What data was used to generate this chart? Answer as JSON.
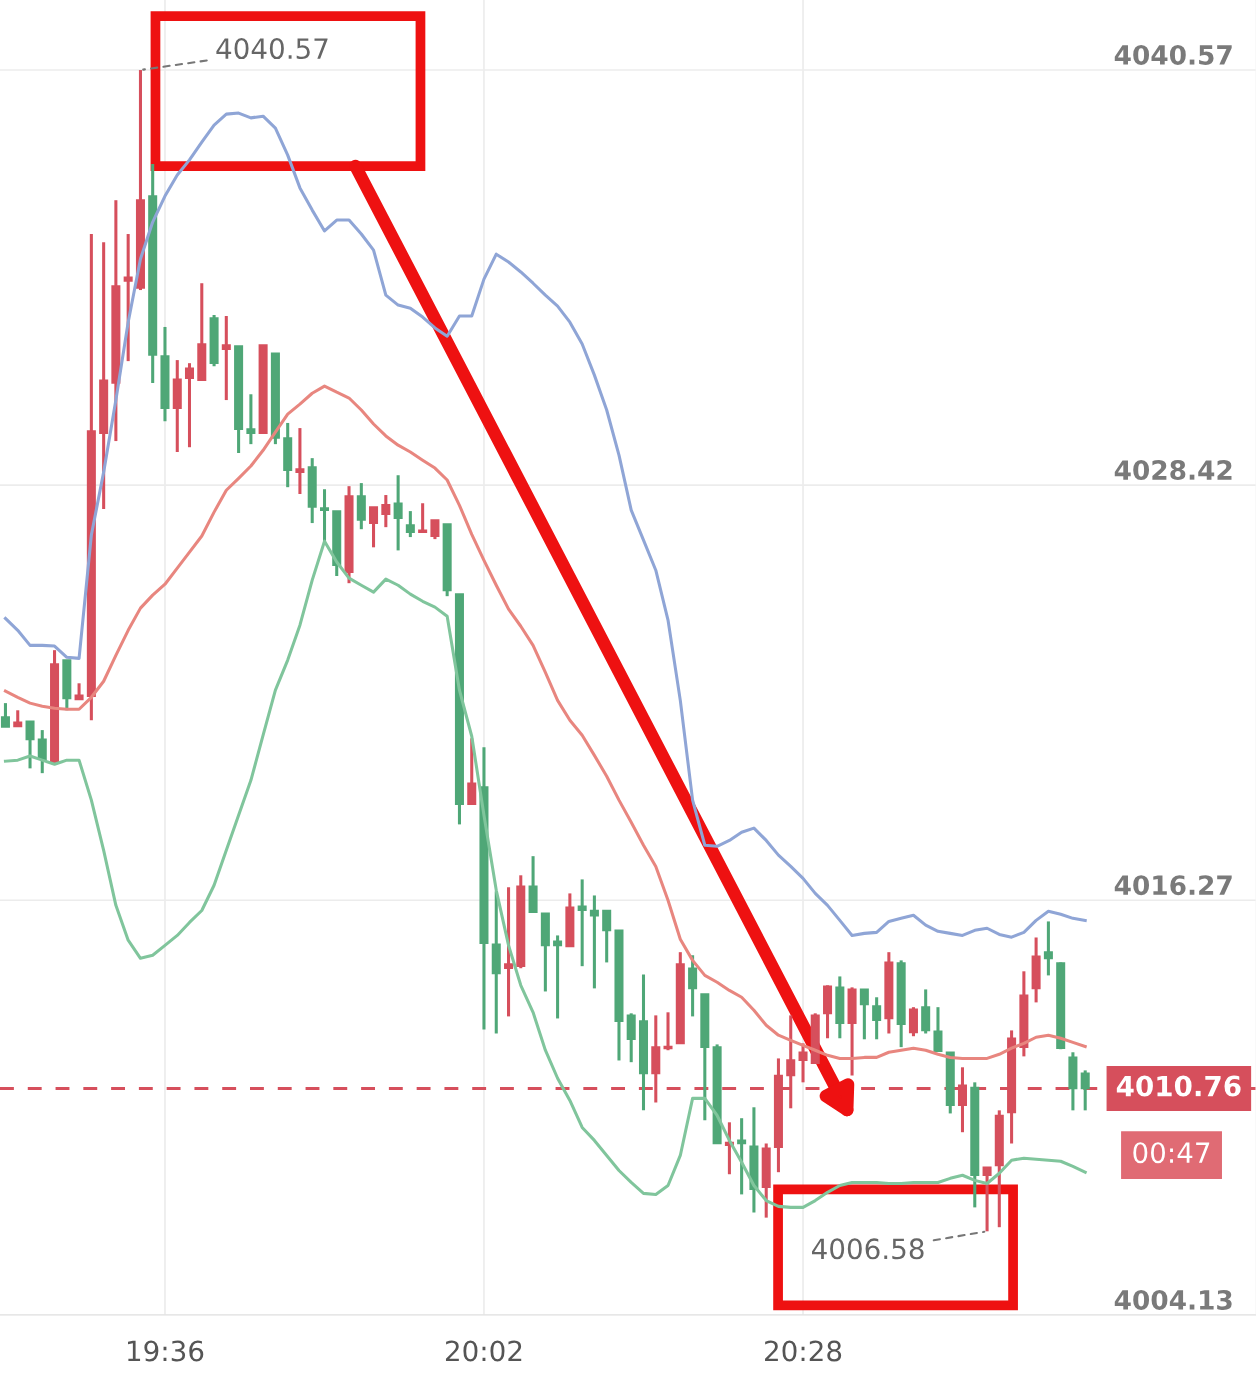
{
  "chart_data": {
    "type": "candlestick",
    "x": [
      19.3833,
      19.4,
      19.4167,
      19.4333,
      19.45,
      19.4667,
      19.4833,
      19.5,
      19.5167,
      19.5333,
      19.55,
      19.5667,
      19.5833,
      19.6,
      19.6167,
      19.6333,
      19.65,
      19.6667,
      19.6833,
      19.7,
      19.7167,
      19.7333,
      19.75,
      19.7667,
      19.7833,
      19.8,
      19.8167,
      19.8333,
      19.85,
      19.8667,
      19.8833,
      19.9,
      19.9167,
      19.9333,
      19.95,
      19.9667,
      19.9833,
      20,
      20.0167,
      20.0333,
      20.05,
      20.0667,
      20.0833,
      20.1,
      20.1167,
      20.1333,
      20.15,
      20.1667,
      20.1833,
      20.2,
      20.2167,
      20.2333,
      20.25,
      20.2667,
      20.2833,
      20.3,
      20.3167,
      20.3333,
      20.35,
      20.3667,
      20.3833,
      20.4,
      20.4167,
      20.4333,
      20.45,
      20.4667,
      20.4833,
      20.5,
      20.5167,
      20.5333,
      20.55,
      20.5667,
      20.5833,
      20.6,
      20.6167,
      20.6333,
      20.65,
      20.6667,
      20.6833,
      20.7,
      20.7167,
      20.7333,
      20.75,
      20.7667,
      20.7833,
      20.8,
      20.8167,
      20.8333,
      20.85
    ],
    "ohlc": [
      [
        4021.63,
        4022.04,
        4021.34,
        4021.34
      ],
      [
        4021.36,
        4021.83,
        4021.34,
        4021.48
      ],
      [
        4021.51,
        4021.51,
        4020.13,
        4020.98
      ],
      [
        4020.98,
        4021.25,
        4019.99,
        4020.4
      ],
      [
        4020.34,
        4023.59,
        4020.25,
        4023.18
      ],
      [
        4023.3,
        4023.3,
        4021.83,
        4022.18
      ],
      [
        4022.15,
        4022.62,
        4022.15,
        4022.27
      ],
      [
        4022.24,
        4035.77,
        4021.54,
        4030.0
      ],
      [
        4029.94,
        4035.53,
        4027.72,
        4031.49
      ],
      [
        4031.41,
        4036.76,
        4029.71,
        4034.25
      ],
      [
        4034.4,
        4035.77,
        4032.05,
        4034.5
      ],
      [
        4034.19,
        4040.57,
        4034.13,
        4036.76
      ],
      [
        4036.88,
        4037.82,
        4031.41,
        4032.23
      ],
      [
        4032.2,
        4033.05,
        4030.29,
        4030.67
      ],
      [
        4030.67,
        4032.08,
        4029.39,
        4031.52
      ],
      [
        4031.55,
        4031.99,
        4029.53,
        4031.84
      ],
      [
        4031.49,
        4034.33,
        4031.49,
        4032.55
      ],
      [
        4033.31,
        4033.4,
        4031.9,
        4031.99
      ],
      [
        4032.4,
        4033.37,
        4030.91,
        4032.52
      ],
      [
        4032.49,
        4032.49,
        4029.36,
        4030.06
      ],
      [
        4030.06,
        4031.08,
        4029.62,
        4029.94
      ],
      [
        4029.94,
        4032.52,
        4029.94,
        4032.52
      ],
      [
        4032.28,
        4032.28,
        4029.62,
        4029.8
      ],
      [
        4029.8,
        4030.24,
        4028.36,
        4028.86
      ],
      [
        4028.8,
        4030.09,
        4028.16,
        4028.89
      ],
      [
        4028.95,
        4029.21,
        4027.31,
        4027.78
      ],
      [
        4027.75,
        4028.3,
        4026.72,
        4027.69
      ],
      [
        4027.66,
        4027.66,
        4025.76,
        4026.08
      ],
      [
        4025.87,
        4028.39,
        4025.55,
        4028.1
      ],
      [
        4028.1,
        4028.48,
        4027.13,
        4027.4
      ],
      [
        4027.31,
        4027.78,
        4026.6,
        4027.78
      ],
      [
        4027.57,
        4028.13,
        4027.19,
        4027.84
      ],
      [
        4027.89,
        4028.71,
        4026.51,
        4027.45
      ],
      [
        4027.25,
        4027.66,
        4026.9,
        4027.04
      ],
      [
        4027.04,
        4027.89,
        4027.04,
        4027.1
      ],
      [
        4026.93,
        4027.4,
        4026.84,
        4027.4
      ],
      [
        4027.28,
        4027.28,
        4025.17,
        4025.34
      ],
      [
        4025.23,
        4025.23,
        4018.49,
        4019.08
      ],
      [
        4019.08,
        4021.01,
        4019.08,
        4019.69
      ],
      [
        4019.58,
        4020.75,
        4012.49,
        4015.01
      ],
      [
        4014.98,
        4016.53,
        4012.37,
        4014.13
      ],
      [
        4014.28,
        4016.65,
        4012.87,
        4014.4
      ],
      [
        4014.34,
        4017.0,
        4014.28,
        4016.68
      ],
      [
        4016.68,
        4017.56,
        4015.92,
        4015.92
      ],
      [
        4015.89,
        4015.89,
        4013.6,
        4014.95
      ],
      [
        4015.07,
        4015.24,
        4012.81,
        4014.95
      ],
      [
        4014.92,
        4016.47,
        4014.92,
        4016.06
      ],
      [
        4016.09,
        4016.88,
        4014.34,
        4015.98
      ],
      [
        4015.97,
        4016.41,
        4013.69,
        4015.82
      ],
      [
        4015.97,
        4015.97,
        4014.45,
        4015.39
      ],
      [
        4015.39,
        4015.39,
        4011.58,
        4012.73
      ],
      [
        4012.9,
        4012.96,
        4011.53,
        4012.2
      ],
      [
        4012.73,
        4014.1,
        4010.12,
        4011.2
      ],
      [
        4011.2,
        4012.9,
        4010.35,
        4011.97
      ],
      [
        4011.93,
        4012.99,
        4011.88,
        4011.99
      ],
      [
        4012.08,
        4014.75,
        4012.08,
        4014.4
      ],
      [
        4014.28,
        4014.66,
        4012.87,
        4013.69
      ],
      [
        4013.52,
        4013.52,
        4009.83,
        4011.97
      ],
      [
        4011.97,
        4012.05,
        4009.15,
        4009.15
      ],
      [
        4009.1,
        4009.77,
        4008.25,
        4009.18
      ],
      [
        4009.24,
        4009.89,
        4007.66,
        4009.15
      ],
      [
        4009.07,
        4010.21,
        4007.13,
        4007.81
      ],
      [
        4007.87,
        4009.15,
        4006.98,
        4009.01
      ],
      [
        4009.04,
        4011.64,
        4008.31,
        4011.14
      ],
      [
        4011.14,
        4012.9,
        4010.18,
        4011.59
      ],
      [
        4011.59,
        4012.08,
        4010.94,
        4011.82
      ],
      [
        4011.5,
        4012.96,
        4011.5,
        4012.9
      ],
      [
        4012.96,
        4013.78,
        4012.23,
        4013.75
      ],
      [
        4013.72,
        4014.04,
        4012.23,
        4012.67
      ],
      [
        4012.67,
        4013.72,
        4011.14,
        4013.66
      ],
      [
        4013.66,
        4013.66,
        4012.2,
        4013.22
      ],
      [
        4013.17,
        4013.43,
        4012.2,
        4012.76
      ],
      [
        4012.81,
        4014.75,
        4012.37,
        4014.45
      ],
      [
        4014.43,
        4014.51,
        4011.97,
        4012.64
      ],
      [
        4012.4,
        4013.14,
        4012.29,
        4013.08
      ],
      [
        4013.14,
        4013.66,
        4012.37,
        4012.46
      ],
      [
        4012.43,
        4013.14,
        4011.85,
        4011.85
      ],
      [
        4011.82,
        4011.82,
        4010.03,
        4010.27
      ],
      [
        4010.27,
        4011.38,
        4009.48,
        4010.85
      ],
      [
        4010.79,
        4010.94,
        4007.28,
        4008.22
      ],
      [
        4008.22,
        4008.45,
        4006.58,
        4008.45
      ],
      [
        4008.51,
        4010.12,
        4006.7,
        4009.97
      ],
      [
        4010.06,
        4012.46,
        4009.15,
        4012.23
      ],
      [
        4011.97,
        4014.19,
        4011.7,
        4013.49
      ],
      [
        4013.69,
        4015.18,
        4013.28,
        4014.63
      ],
      [
        4014.75,
        4015.65,
        4014.07,
        4014.57
      ],
      [
        4014.43,
        4014.45,
        4011.91,
        4011.94
      ],
      [
        4011.67,
        4011.82,
        4010.12,
        4010.76
      ],
      [
        4011.2,
        4011.29,
        4010.12,
        4010.76
      ]
    ],
    "colors": [
      "#4fa777",
      "#d64f5c",
      "#4fa777",
      "#4fa777",
      "#d64f5c",
      "#4fa777",
      "#d64f5c",
      "#d64f5c",
      "#d64f5c",
      "#d64f5c",
      "#d64f5c",
      "#d64f5c",
      "#4fa777",
      "#4fa777",
      "#d64f5c",
      "#d64f5c",
      "#d64f5c",
      "#4fa777",
      "#d64f5c",
      "#4fa777",
      "#4fa777",
      "#d64f5c",
      "#4fa777",
      "#4fa777",
      "#d64f5c",
      "#4fa777",
      "#4fa777",
      "#4fa777",
      "#d64f5c",
      "#4fa777",
      "#d64f5c",
      "#d64f5c",
      "#4fa777",
      "#4fa777",
      "#d64f5c",
      "#d64f5c",
      "#4fa777",
      "#4fa777",
      "#d64f5c",
      "#4fa777",
      "#4fa777",
      "#d64f5c",
      "#d64f5c",
      "#4fa777",
      "#4fa777",
      "#4fa777",
      "#d64f5c",
      "#4fa777",
      "#4fa777",
      "#4fa777",
      "#4fa777",
      "#4fa777",
      "#4fa777",
      "#d64f5c",
      "#d64f5c",
      "#d64f5c",
      "#4fa777",
      "#4fa777",
      "#4fa777",
      "#d64f5c",
      "#4fa777",
      "#4fa777",
      "#d64f5c",
      "#d64f5c",
      "#d64f5c",
      "#d64f5c",
      "#d64f5c",
      "#d64f5c",
      "#4fa777",
      "#d64f5c",
      "#4fa777",
      "#4fa777",
      "#d64f5c",
      "#4fa777",
      "#d64f5c",
      "#4fa777",
      "#4fa777",
      "#4fa777",
      "#d64f5c",
      "#4fa777",
      "#d64f5c",
      "#d64f5c",
      "#d64f5c",
      "#d64f5c",
      "#d64f5c",
      "#4fa777",
      "#4fa777",
      "#4fa777",
      "#4fa777"
    ],
    "series": [
      {
        "type": "line",
        "color": "#8fa5d6",
        "values": [
          4024.52,
          4024.17,
          4023.73,
          4023.73,
          4023.71,
          4023.38,
          4023.35,
          4026.96,
          4028.8,
          4030.91,
          4033.19,
          4035.04,
          4036.12,
          4036.88,
          4037.5,
          4037.94,
          4038.46,
          4038.96,
          4039.28,
          4039.31,
          4039.17,
          4039.22,
          4038.87,
          4038.08,
          4037.12,
          4036.47,
          4035.86,
          4036.18,
          4036.18,
          4035.77,
          4035.3,
          4033.98,
          4033.69,
          4033.6,
          4033.34,
          4033.02,
          4032.78,
          4033.37,
          4033.37,
          4034.45,
          4035.18,
          4034.95,
          4034.66,
          4034.33,
          4033.98,
          4033.66,
          4033.19,
          4032.55,
          4031.64,
          4030.62,
          4029.3,
          4027.69,
          4026.81,
          4025.93,
          4024.47,
          4022.12,
          4019.2,
          4017.88,
          4017.85,
          4018.02,
          4018.26,
          4018.38,
          4018.02,
          4017.59,
          4017.26,
          4016.91,
          4016.47,
          4016.12,
          4015.68,
          4015.24,
          4015.3,
          4015.33,
          4015.65,
          4015.74,
          4015.83,
          4015.54,
          4015.36,
          4015.3,
          4015.24,
          4015.39,
          4015.45,
          4015.27,
          4015.19,
          4015.33,
          4015.68,
          4015.95,
          4015.86,
          4015.74,
          4015.68
        ]
      },
      {
        "type": "line",
        "color": "#e8867f",
        "values": [
          4022.39,
          4022.21,
          4022.04,
          4021.95,
          4021.89,
          4021.86,
          4021.86,
          4022.21,
          4022.68,
          4023.44,
          4024.17,
          4024.82,
          4025.2,
          4025.52,
          4025.99,
          4026.46,
          4026.93,
          4027.63,
          4028.27,
          4028.62,
          4028.98,
          4029.44,
          4029.97,
          4030.5,
          4030.79,
          4031.11,
          4031.32,
          4031.14,
          4030.97,
          4030.62,
          4030.21,
          4029.86,
          4029.59,
          4029.39,
          4029.15,
          4028.92,
          4028.57,
          4027.83,
          4026.98,
          4026.22,
          4025.49,
          4024.79,
          4024.29,
          4023.73,
          4022.94,
          4022.12,
          4021.54,
          4021.1,
          4020.51,
          4019.9,
          4019.2,
          4018.55,
          4017.88,
          4017.26,
          4016.27,
          4015.13,
          4014.51,
          4014.07,
          4013.87,
          4013.63,
          4013.43,
          4013.05,
          4012.61,
          4012.32,
          4012.17,
          4012.02,
          4011.88,
          4011.73,
          4011.64,
          4011.64,
          4011.67,
          4011.67,
          4011.82,
          4011.88,
          4011.94,
          4011.88,
          4011.76,
          4011.67,
          4011.64,
          4011.64,
          4011.64,
          4011.76,
          4011.94,
          4012.08,
          4012.26,
          4012.32,
          4012.23,
          4012.11,
          4011.99
        ]
      },
      {
        "type": "line",
        "color": "#80c59c",
        "values": [
          4020.34,
          4020.37,
          4020.49,
          4020.37,
          4020.25,
          4020.37,
          4020.37,
          4019.2,
          4017.73,
          4016.12,
          4015.1,
          4014.57,
          4014.66,
          4014.95,
          4015.24,
          4015.62,
          4015.97,
          4016.71,
          4017.73,
          4018.76,
          4019.78,
          4021.1,
          4022.42,
          4023.3,
          4024.32,
          4025.64,
          4026.78,
          4026.17,
          4025.7,
          4025.49,
          4025.29,
          4025.67,
          4025.49,
          4025.23,
          4025.02,
          4024.85,
          4024.58,
          4022.42,
          4021.07,
          4018.76,
          4016.56,
          4014.95,
          4013.78,
          4012.99,
          4011.88,
          4011.06,
          4010.41,
          4009.62,
          4009.24,
          4008.8,
          4008.36,
          4008.01,
          4007.69,
          4007.66,
          4007.92,
          4008.8,
          4010.47,
          4010.47,
          4009.97,
          4009.24,
          4008.6,
          4007.92,
          4007.48,
          4007.31,
          4007.28,
          4007.28,
          4007.48,
          4007.72,
          4007.92,
          4008.01,
          4008.01,
          4008.01,
          4007.98,
          4007.98,
          4008.01,
          4008.01,
          4008.01,
          4008.13,
          4008.22,
          4008.07,
          4007.98,
          4008.28,
          4008.66,
          4008.72,
          4008.69,
          4008.66,
          4008.63,
          4008.48,
          4008.31
        ]
      }
    ],
    "xlim": [
      19.3759,
      21.082
    ],
    "xticks": [
      {
        "value": 19.6,
        "label": "19:36"
      },
      {
        "value": 20.0333,
        "label": "20:02"
      },
      {
        "value": 20.4667,
        "label": "20:28"
      }
    ],
    "ylim": [
      4004.13,
      4042.62
    ],
    "yticks": [
      4004.13,
      4016.27,
      4028.42,
      4040.57
    ],
    "grid": true,
    "ref_lines": [
      {
        "axis": "y",
        "value": 4010.76,
        "label": "4010.76",
        "color": "#d64f5c",
        "line_style": "dashed"
      }
    ],
    "annotations": [
      {
        "text": "4040.57",
        "x": 19.5667,
        "y": 4040.57
      },
      {
        "text": "4006.58",
        "x": 20.7167,
        "y": 4006.58
      },
      "00:47"
    ]
  }
}
